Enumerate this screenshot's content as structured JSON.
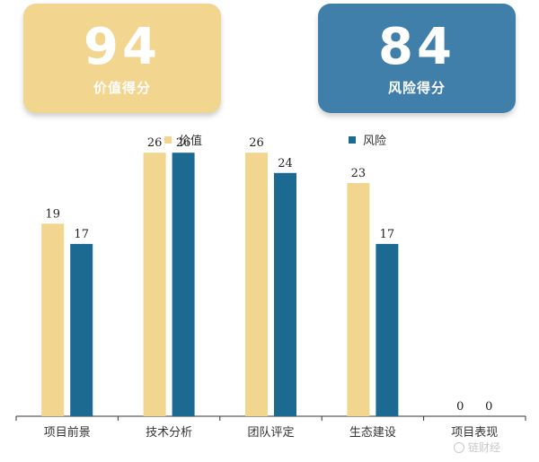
{
  "cards": {
    "value": {
      "score": "94",
      "label": "价值得分",
      "color": "#f2d58e"
    },
    "risk": {
      "score": "84",
      "label": "风险得分",
      "color": "#3f7fa9"
    }
  },
  "legend": {
    "value_label": "价值",
    "risk_label": "风险"
  },
  "watermark": "链财经",
  "chart_data": {
    "type": "bar",
    "categories": [
      "项目前景",
      "技术分析",
      "团队评定",
      "生态建设",
      "项目表现"
    ],
    "series": [
      {
        "name": "价值",
        "values": [
          19,
          26,
          26,
          23,
          0
        ],
        "color": "#f2d58e"
      },
      {
        "name": "风险",
        "values": [
          17,
          26,
          24,
          17,
          0
        ],
        "color": "#1c6a92"
      }
    ],
    "ylim": [
      0,
      30
    ],
    "grid": false,
    "legend_position": "top"
  }
}
